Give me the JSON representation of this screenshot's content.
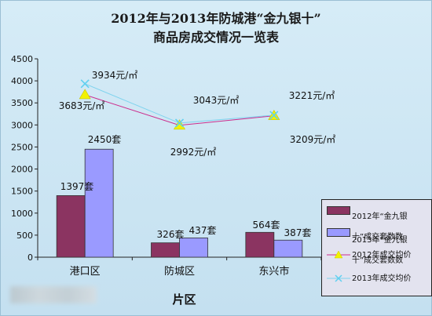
{
  "title_line1": "2012年与2013年防城港“金九银十”",
  "title_line2": "商品房成交情况一览表",
  "chart_data": {
    "type": "bar",
    "categories": [
      "港口区",
      "防城区",
      "东兴市"
    ],
    "xlabel": "片区",
    "ylabel": "",
    "ylim": [
      0,
      4500
    ],
    "yticks": [
      0,
      500,
      1000,
      1500,
      2000,
      2500,
      3000,
      3500,
      4000,
      4500
    ],
    "bar_series": [
      {
        "name": "2012年“金九银十”成交套数",
        "values": [
          1397,
          326,
          564
        ],
        "color": "#8b3461",
        "labels": [
          "1397套",
          "326套",
          "564套"
        ]
      },
      {
        "name": "2013年“金九银十”成交套数",
        "values": [
          2450,
          437,
          387
        ],
        "color": "#9a9aff",
        "labels": [
          "2450套",
          "437套",
          "387套"
        ]
      }
    ],
    "line_series": [
      {
        "name": "2012年成交均价",
        "values": [
          3683,
          2992,
          3209
        ],
        "color": "#cc2c8c",
        "marker": "triangle",
        "marker_color": "#f2f200",
        "labels": [
          "3683元/㎡",
          "2992元/㎡",
          "3209元/㎡"
        ]
      },
      {
        "name": "2013年成交均价",
        "values": [
          3934,
          3043,
          3221
        ],
        "color": "#7fd3ee",
        "marker": "x",
        "marker_color": "#5fd0f0",
        "labels": [
          "3934元/㎡",
          "3043元/㎡",
          "3221元/㎡"
        ]
      }
    ],
    "legend_position": "right",
    "grid": false
  },
  "legend": {
    "bar1_line1": "2012年“金九银",
    "bar1_line2": "十”成交套数数",
    "bar2_line1": "2013年“金九银",
    "bar2_line2": "十”成交套数数",
    "line1": "2012年成交均价",
    "line2": "2013年成交均价"
  }
}
